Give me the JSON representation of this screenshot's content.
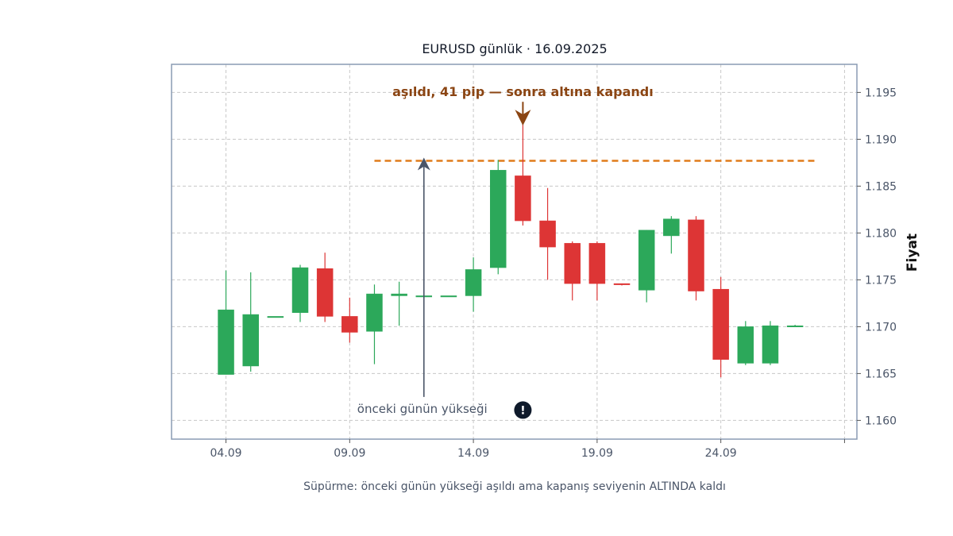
{
  "chart_data": {
    "type": "candlestick",
    "title": "EURUSD günlük · 16.09.2025",
    "ylabel": "Fiyat",
    "xlabel": "",
    "caption": "Süpürme: önceki günün yükseği aşıldı ama kapanış seviyenin ALTINDA kaldı",
    "ylim": [
      1.158,
      1.198
    ],
    "yticks": [
      "1.160",
      "1.165",
      "1.170",
      "1.175",
      "1.180",
      "1.185",
      "1.190",
      "1.195"
    ],
    "xlim": [
      2.8,
      30.5
    ],
    "xticks": [
      {
        "day": 5,
        "label": "04.09"
      },
      {
        "day": 10,
        "label": "09.09"
      },
      {
        "day": 15,
        "label": "14.09"
      },
      {
        "day": 20,
        "label": "19.09"
      },
      {
        "day": 25,
        "label": "24.09"
      },
      {
        "day": 30,
        "label": ""
      }
    ],
    "grid": true,
    "up_color": "#2ca85a",
    "down_color": "#dd3535",
    "candles": [
      {
        "day": 5,
        "open": 1.1649,
        "high": 1.176,
        "low": 1.1649,
        "close": 1.1718
      },
      {
        "day": 6,
        "open": 1.1658,
        "high": 1.1758,
        "low": 1.1652,
        "close": 1.1713
      },
      {
        "day": 7,
        "open": 1.1711,
        "high": 1.1711,
        "low": 1.1711,
        "close": 1.1711
      },
      {
        "day": 8,
        "open": 1.1715,
        "high": 1.1766,
        "low": 1.1705,
        "close": 1.1763
      },
      {
        "day": 9,
        "open": 1.1762,
        "high": 1.1779,
        "low": 1.1705,
        "close": 1.1711
      },
      {
        "day": 10,
        "open": 1.1711,
        "high": 1.1731,
        "low": 1.1683,
        "close": 1.1694
      },
      {
        "day": 11,
        "open": 1.1695,
        "high": 1.1745,
        "low": 1.166,
        "close": 1.1735
      },
      {
        "day": 12,
        "open": 1.1733,
        "high": 1.1748,
        "low": 1.1701,
        "close": 1.1735
      },
      {
        "day": 13,
        "open": 1.1733,
        "high": 1.175,
        "low": 1.1701,
        "close": 1.1733
      },
      {
        "day": 14,
        "open": 1.1733,
        "high": 1.1733,
        "low": 1.1733,
        "close": 1.1733
      },
      {
        "day": 15,
        "open": 1.1733,
        "high": 1.1774,
        "low": 1.1716,
        "close": 1.1761
      },
      {
        "day": 16,
        "open": 1.1763,
        "high": 1.1878,
        "low": 1.1756,
        "close": 1.1867
      },
      {
        "day": 17,
        "open": 1.1861,
        "high": 1.1918,
        "low": 1.1808,
        "close": 1.1813
      },
      {
        "day": 18,
        "open": 1.1813,
        "high": 1.1848,
        "low": 1.175,
        "close": 1.1785
      },
      {
        "day": 19,
        "open": 1.1789,
        "high": 1.1791,
        "low": 1.1728,
        "close": 1.1746
      },
      {
        "day": 20,
        "open": 1.1789,
        "high": 1.1791,
        "low": 1.1728,
        "close": 1.1746
      },
      {
        "day": 21,
        "open": 1.1746,
        "high": 1.1746,
        "low": 1.1744,
        "close": 1.1745
      },
      {
        "day": 22,
        "open": 1.1739,
        "high": 1.1803,
        "low": 1.1726,
        "close": 1.1803
      },
      {
        "day": 23,
        "open": 1.1797,
        "high": 1.1818,
        "low": 1.1778,
        "close": 1.1815
      },
      {
        "day": 24,
        "open": 1.1814,
        "high": 1.1818,
        "low": 1.1728,
        "close": 1.1738
      },
      {
        "day": 25,
        "open": 1.174,
        "high": 1.1753,
        "low": 1.1646,
        "close": 1.1665
      },
      {
        "day": 26,
        "open": 1.1661,
        "high": 1.1706,
        "low": 1.1659,
        "close": 1.17
      },
      {
        "day": 27,
        "open": 1.1661,
        "high": 1.1706,
        "low": 1.1659,
        "close": 1.1701
      },
      {
        "day": 28,
        "open": 1.1701,
        "high": 1.1702,
        "low": 1.17,
        "close": 1.1701
      }
    ],
    "level_line": {
      "value": 1.1877,
      "x_start": 11,
      "x_end": 28.8,
      "color": "#e07b1a"
    },
    "annotations": [
      {
        "text": "aşıldı, 41 pip — sonra altına kapandı",
        "day": 17,
        "price": 1.1951,
        "arrow_to": 1.1918,
        "color": "#8b4513"
      },
      {
        "text": "önceki günün yükseği",
        "day": 13,
        "price": 1.1612,
        "arrow_from": 1.1625,
        "arrow_to": 1.1877,
        "color": "#4a5568"
      }
    ],
    "marker": {
      "symbol": "!",
      "day": 17,
      "price": 1.1611
    }
  }
}
